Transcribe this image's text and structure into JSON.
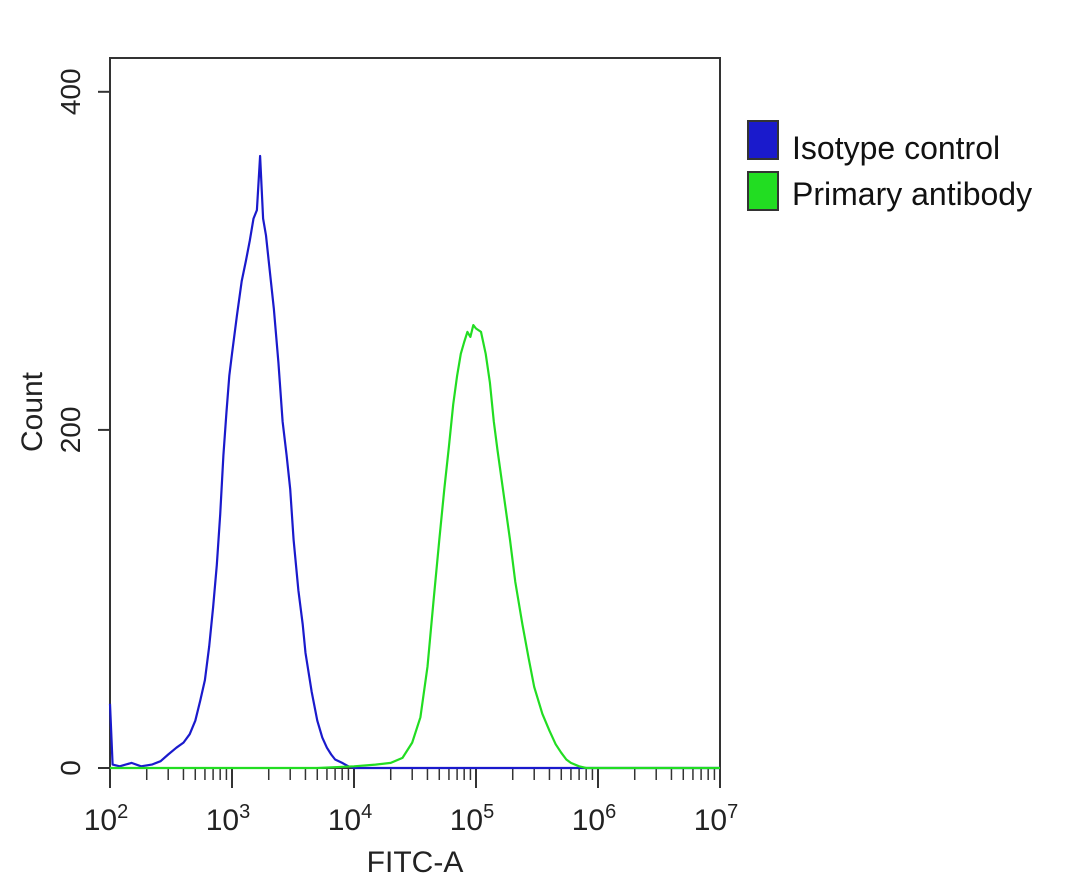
{
  "chart_data": {
    "type": "line",
    "title": "",
    "xlabel": "FITC-A",
    "ylabel": "Count",
    "x_scale": "log",
    "xlim": [
      100,
      10000000
    ],
    "ylim": [
      0,
      420
    ],
    "x_ticks": [
      100,
      1000,
      10000,
      100000,
      1000000,
      10000000
    ],
    "x_tick_bases": [
      "10",
      "10",
      "10",
      "10",
      "10",
      "10"
    ],
    "x_tick_exponents": [
      "2",
      "3",
      "4",
      "5",
      "6",
      "7"
    ],
    "y_ticks": [
      0,
      200,
      400
    ],
    "y_tick_labels": [
      "0",
      "200",
      "400"
    ],
    "grid": false,
    "legend_position": "right-top",
    "series": [
      {
        "name": "Isotype control",
        "color": "#1a1acc",
        "points": [
          [
            100,
            38
          ],
          [
            105,
            2
          ],
          [
            120,
            1
          ],
          [
            150,
            3
          ],
          [
            180,
            1
          ],
          [
            220,
            2
          ],
          [
            260,
            4
          ],
          [
            300,
            8
          ],
          [
            350,
            12
          ],
          [
            400,
            15
          ],
          [
            450,
            20
          ],
          [
            500,
            28
          ],
          [
            550,
            40
          ],
          [
            600,
            52
          ],
          [
            650,
            72
          ],
          [
            700,
            95
          ],
          [
            750,
            120
          ],
          [
            800,
            150
          ],
          [
            850,
            185
          ],
          [
            900,
            210
          ],
          [
            950,
            232
          ],
          [
            1000,
            245
          ],
          [
            1100,
            268
          ],
          [
            1200,
            288
          ],
          [
            1300,
            300
          ],
          [
            1400,
            312
          ],
          [
            1500,
            325
          ],
          [
            1600,
            330
          ],
          [
            1700,
            362
          ],
          [
            1800,
            325
          ],
          [
            1900,
            315
          ],
          [
            2000,
            300
          ],
          [
            2200,
            272
          ],
          [
            2400,
            240
          ],
          [
            2600,
            205
          ],
          [
            2800,
            185
          ],
          [
            3000,
            165
          ],
          [
            3200,
            135
          ],
          [
            3500,
            105
          ],
          [
            3800,
            85
          ],
          [
            4000,
            68
          ],
          [
            4500,
            45
          ],
          [
            5000,
            28
          ],
          [
            5500,
            18
          ],
          [
            6000,
            12
          ],
          [
            6500,
            8
          ],
          [
            7000,
            5
          ],
          [
            8000,
            3
          ],
          [
            9000,
            1
          ],
          [
            10000,
            0
          ],
          [
            20000,
            0
          ],
          [
            100000,
            0
          ],
          [
            1000000,
            0
          ],
          [
            10000000,
            0
          ]
        ]
      },
      {
        "name": "Primary antibody",
        "color": "#22dd22",
        "points": [
          [
            100,
            0
          ],
          [
            5000,
            0
          ],
          [
            10000,
            1
          ],
          [
            15000,
            2
          ],
          [
            20000,
            3
          ],
          [
            25000,
            6
          ],
          [
            30000,
            15
          ],
          [
            35000,
            30
          ],
          [
            40000,
            60
          ],
          [
            45000,
            100
          ],
          [
            50000,
            135
          ],
          [
            55000,
            165
          ],
          [
            60000,
            190
          ],
          [
            65000,
            215
          ],
          [
            70000,
            232
          ],
          [
            75000,
            245
          ],
          [
            80000,
            252
          ],
          [
            85000,
            258
          ],
          [
            90000,
            255
          ],
          [
            95000,
            262
          ],
          [
            100000,
            260
          ],
          [
            110000,
            258
          ],
          [
            120000,
            245
          ],
          [
            130000,
            228
          ],
          [
            140000,
            205
          ],
          [
            150000,
            188
          ],
          [
            170000,
            160
          ],
          [
            190000,
            135
          ],
          [
            210000,
            110
          ],
          [
            240000,
            85
          ],
          [
            270000,
            65
          ],
          [
            300000,
            48
          ],
          [
            350000,
            32
          ],
          [
            400000,
            22
          ],
          [
            450000,
            14
          ],
          [
            500000,
            9
          ],
          [
            550000,
            5
          ],
          [
            600000,
            3
          ],
          [
            700000,
            1
          ],
          [
            800000,
            0
          ],
          [
            10000000,
            0
          ]
        ]
      }
    ]
  }
}
